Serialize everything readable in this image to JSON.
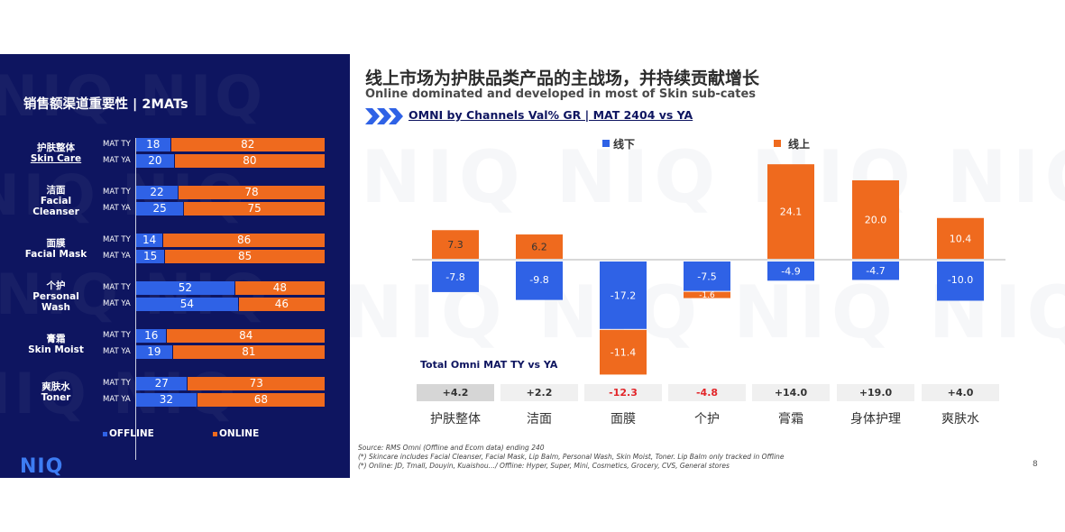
{
  "left_panel": {
    "title": "销售额渠道重要性 | 2MATs",
    "row_labels": [
      "MAT TY",
      "MAT YA"
    ],
    "legend": {
      "offline": "OFFLINE",
      "online": "ONLINE"
    },
    "logo": "NIQ",
    "categories": [
      {
        "zh": "护肤整体",
        "en": "Skin Care",
        "ty": [
          18,
          82
        ],
        "ya": [
          20,
          80
        ]
      },
      {
        "zh": "洁面",
        "en": "Facial\nCleanser",
        "ty": [
          22,
          78
        ],
        "ya": [
          25,
          75
        ]
      },
      {
        "zh": "面膜",
        "en": "Facial Mask",
        "ty": [
          14,
          86
        ],
        "ya": [
          15,
          85
        ]
      },
      {
        "zh": "个护",
        "en": "Personal\nWash",
        "ty": [
          52,
          48
        ],
        "ya": [
          54,
          46
        ]
      },
      {
        "zh": "膏霜",
        "en": "Skin Moist",
        "ty": [
          16,
          84
        ],
        "ya": [
          19,
          81
        ]
      },
      {
        "zh": "爽肤水",
        "en": "Toner",
        "ty": [
          27,
          73
        ],
        "ya": [
          32,
          68
        ]
      }
    ]
  },
  "header": {
    "title": "线上市场为护肤品类产品的主战场，并持续贡献增长",
    "subtitle": "Online dominated and developed in most of Skin sub-cates",
    "section": "OMNI by Channels Val% GR | MAT 2404 vs YA"
  },
  "chart_data": {
    "type": "bar",
    "categories": [
      "护肤整体",
      "洁面",
      "面膜",
      "个护",
      "膏霜",
      "身体护理",
      "爽肤水"
    ],
    "series": [
      {
        "name": "线下",
        "values": [
          -7.8,
          -9.8,
          -17.2,
          -7.5,
          -4.9,
          -4.7,
          -10.0
        ],
        "labels": [
          "-7.8",
          "-9.8",
          "-17.2",
          "-7.5",
          "-4.9",
          "-4.7",
          "-10.0"
        ]
      },
      {
        "name": "线上",
        "values": [
          7.3,
          6.2,
          -11.4,
          -1.6,
          24.1,
          20.0,
          10.4
        ],
        "labels": [
          "7.3",
          "6.2",
          "-11.4",
          "-1.6",
          "24.1",
          "20.0",
          "10.4"
        ]
      }
    ],
    "ylim": [
      -20,
      25
    ],
    "legend_position": "top"
  },
  "totals": {
    "label": "Total Omni MAT TY vs YA",
    "values": [
      "+4.2",
      "+2.2",
      "-12.3",
      "-4.8",
      "+14.0",
      "+19.0",
      "+4.0"
    ]
  },
  "colors": {
    "offline": "#2f62e6",
    "online": "#ef6a1e",
    "panel": "#0e1560",
    "negative": "#e2262a"
  },
  "footnotes": [
    "Source: RMS Omni (Offline and Ecom data) ending 240",
    "(*) Skincare includes Facial Cleanser, Facial Mask, Lip Balm, Personal Wash, Skin Moist, Toner. Lip Balm only tracked in Offline",
    "(*) Online: JD, Tmall, Douyin, Kuaishou…/ Offline: Hyper, Super, Mini, Cosmetics, Grocery, CVS, General stores"
  ],
  "page_number": "8"
}
